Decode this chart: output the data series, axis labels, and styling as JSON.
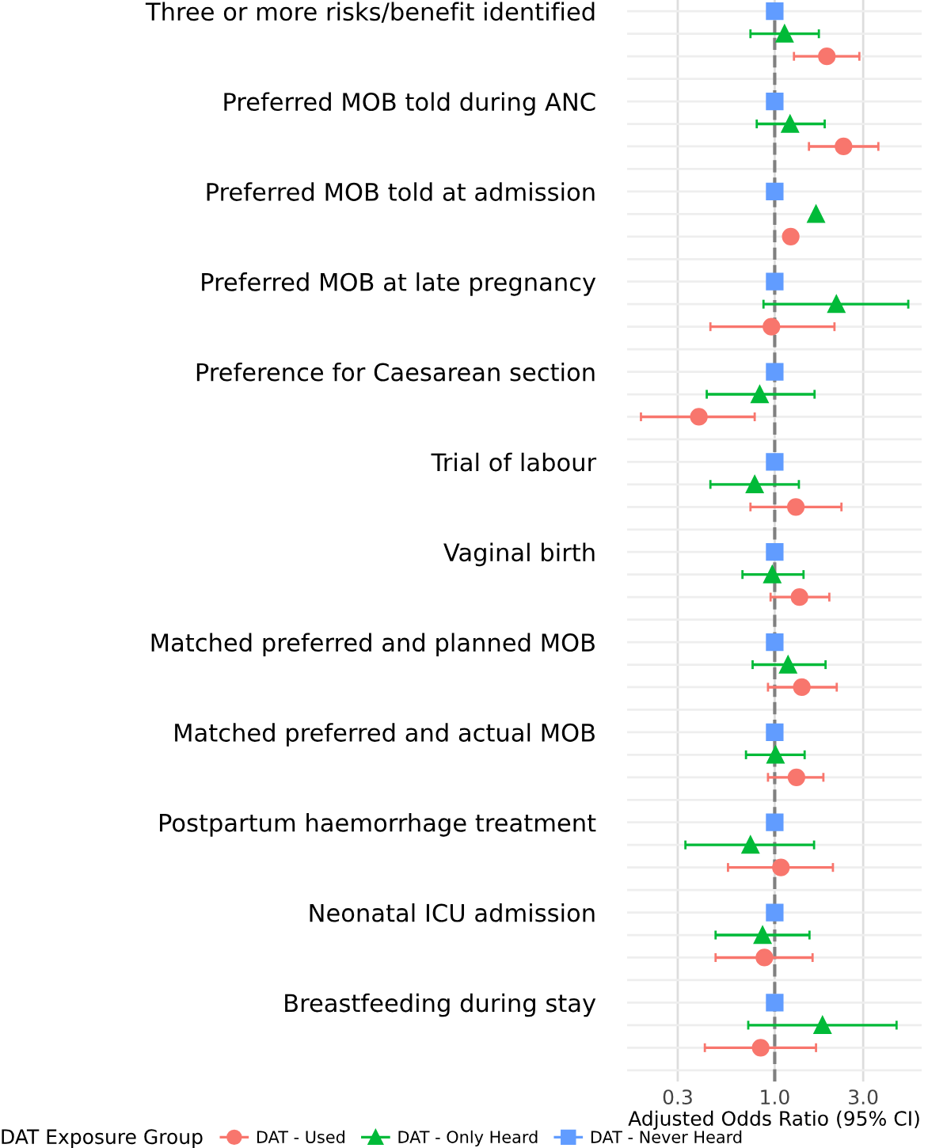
{
  "chart_data": {
    "type": "scatter",
    "orientation": "horizontal",
    "xlabel": "Adjusted Odds Ratio (95% CI)",
    "legend_title": "DAT Exposure Group",
    "legend": "bottom",
    "grid": true,
    "log": "x",
    "xlim": [
      0.16,
      6.2
    ],
    "xticks": [
      {
        "value": 0.3,
        "label": "0.3"
      },
      {
        "value": 1,
        "label": "1.0"
      },
      {
        "value": 3,
        "label": "3.0"
      }
    ],
    "ref_lines": [
      {
        "axis": "x",
        "value": 1,
        "color": "#808080",
        "line_style": "dashed"
      }
    ],
    "categories": [
      "Three or more risks/benefit identified",
      null,
      null,
      null,
      "Preferred MOB told during ANC",
      null,
      null,
      null,
      "Preferred MOB told at admission",
      null,
      null,
      null,
      "Preferred MOB at late pregnancy",
      null,
      null,
      null,
      "Preference for Caesarean section",
      null,
      null,
      null,
      "Trial of labour",
      null,
      null,
      null,
      "Vaginal birth",
      null,
      null,
      null,
      "Matched preferred and planned MOB",
      null,
      null,
      null,
      "Matched preferred and actual MOB",
      null,
      null,
      null,
      "Postpartum haemorrhage treatment",
      null,
      null,
      null,
      "Neonatal ICU admission",
      null,
      null,
      null,
      "Breastfeeding during stay",
      null,
      null,
      null
    ],
    "series": [
      {
        "name": "DAT - Used",
        "color": "#f8766d",
        "marker": "circle",
        "values": [
          null,
          null,
          1.91,
          null,
          null,
          null,
          2.35,
          null,
          null,
          null,
          1.22,
          null,
          null,
          null,
          0.96,
          null,
          null,
          null,
          0.39,
          null,
          null,
          null,
          1.3,
          null,
          null,
          null,
          1.36,
          null,
          null,
          null,
          1.4,
          null,
          null,
          null,
          1.31,
          null,
          null,
          null,
          1.08,
          null,
          null,
          null,
          0.88,
          null,
          null,
          null,
          0.84,
          null
        ],
        "errors": [
          null,
          null,
          [
            1.27,
            2.86
          ],
          null,
          null,
          null,
          [
            1.53,
            3.62
          ],
          null,
          null,
          null,
          null,
          null,
          null,
          null,
          [
            0.45,
            2.1
          ],
          null,
          null,
          null,
          [
            0.19,
            0.78
          ],
          null,
          null,
          null,
          [
            0.74,
            2.29
          ],
          null,
          null,
          null,
          [
            0.95,
            1.97
          ],
          null,
          null,
          null,
          [
            0.92,
            2.16
          ],
          null,
          null,
          null,
          [
            0.92,
            1.83
          ],
          null,
          null,
          null,
          [
            0.56,
            2.06
          ],
          null,
          null,
          null,
          [
            0.48,
            1.6
          ],
          null,
          null,
          null,
          [
            0.42,
            1.67
          ],
          null
        ]
      },
      {
        "name": "DAT - Only Heard",
        "color": "#00ba38",
        "marker": "triangle",
        "values": [
          null,
          1.13,
          null,
          null,
          null,
          1.21,
          null,
          null,
          null,
          1.67,
          null,
          null,
          null,
          2.15,
          null,
          null,
          null,
          0.83,
          null,
          null,
          null,
          0.78,
          null,
          null,
          null,
          0.97,
          null,
          null,
          null,
          1.18,
          null,
          null,
          null,
          1.01,
          null,
          null,
          null,
          0.74,
          null,
          null,
          null,
          0.86,
          null,
          null,
          null,
          1.81,
          null,
          null
        ],
        "errors": [
          null,
          [
            0.74,
            1.73
          ],
          null,
          null,
          null,
          [
            0.8,
            1.86
          ],
          null,
          null,
          null,
          null,
          null,
          null,
          null,
          [
            0.87,
            5.25
          ],
          null,
          null,
          null,
          [
            0.43,
            1.64
          ],
          null,
          null,
          null,
          [
            0.45,
            1.35
          ],
          null,
          null,
          null,
          [
            0.67,
            1.43
          ],
          null,
          null,
          null,
          [
            0.76,
            1.88
          ],
          null,
          null,
          null,
          [
            0.7,
            1.45
          ],
          null,
          null,
          null,
          [
            0.33,
            1.63
          ],
          null,
          null,
          null,
          [
            0.48,
            1.54
          ],
          null,
          null,
          null,
          [
            0.72,
            4.54
          ],
          null,
          null
        ]
      },
      {
        "name": "DAT - Never Heard",
        "color": "#619cff",
        "marker": "square",
        "values": [
          1,
          null,
          null,
          null,
          1,
          null,
          null,
          null,
          1,
          null,
          null,
          null,
          1,
          null,
          null,
          null,
          1,
          null,
          null,
          null,
          1,
          null,
          null,
          null,
          1,
          null,
          null,
          null,
          1,
          null,
          null,
          null,
          1,
          null,
          null,
          null,
          1,
          null,
          null,
          null,
          1,
          null,
          null,
          null,
          1,
          null,
          null,
          null
        ]
      }
    ]
  }
}
